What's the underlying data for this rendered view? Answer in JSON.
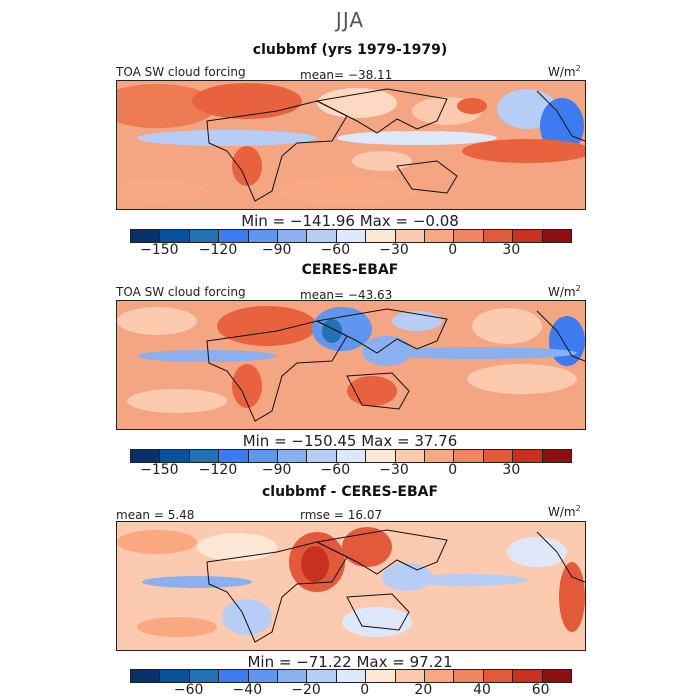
{
  "figure": {
    "season": "JJA",
    "units_label": "W/m",
    "units_sup": "2"
  },
  "chart_data": [
    {
      "type": "heatmap",
      "title": "clubbmf (yrs 1979-1979)",
      "left_label": "TOA SW cloud forcing",
      "stat_label": "mean= −38.11",
      "min_max_text": "Min = −141.96 Max = −0.08",
      "min": -141.96,
      "max": -0.08,
      "mean": -38.11,
      "colorbar": {
        "bounds": [
          -165,
          -150,
          -135,
          -120,
          -105,
          -90,
          -75,
          -60,
          -45,
          -30,
          -15,
          0,
          15,
          30,
          45,
          60
        ],
        "colors": [
          "#08306b",
          "#08519c",
          "#2171b5",
          "#3d7cf0",
          "#5f96f0",
          "#8ab0f0",
          "#b6cdf6",
          "#dfe8fb",
          "#fde7d6",
          "#fccaae",
          "#f9a882",
          "#f08660",
          "#e35a3a",
          "#c8311e",
          "#8f1010"
        ],
        "tick_values": [
          -150,
          -120,
          -90,
          -60,
          -30,
          0,
          30
        ],
        "tick_labels": [
          "−150",
          "−120",
          "−90",
          "−60",
          "−30",
          "0",
          "30"
        ]
      }
    },
    {
      "type": "heatmap",
      "title": "CERES-EBAF",
      "left_label": "TOA SW cloud forcing",
      "stat_label": "mean= −43.63",
      "min_max_text": "Min = −150.45 Max = 37.76",
      "min": -150.45,
      "max": 37.76,
      "mean": -43.63,
      "colorbar": {
        "bounds": [
          -165,
          -150,
          -135,
          -120,
          -105,
          -90,
          -75,
          -60,
          -45,
          -30,
          -15,
          0,
          15,
          30,
          45,
          60
        ],
        "colors": [
          "#08306b",
          "#08519c",
          "#2171b5",
          "#3d7cf0",
          "#5f96f0",
          "#8ab0f0",
          "#b6cdf6",
          "#dfe8fb",
          "#fde7d6",
          "#fccaae",
          "#f9a882",
          "#f08660",
          "#e35a3a",
          "#c8311e",
          "#8f1010"
        ],
        "tick_values": [
          -150,
          -120,
          -90,
          -60,
          -30,
          0,
          30
        ],
        "tick_labels": [
          "−150",
          "−120",
          "−90",
          "−60",
          "−30",
          "0",
          "30"
        ]
      }
    },
    {
      "type": "heatmap",
      "title": "clubbmf - CERES-EBAF",
      "left_label": "mean =   5.48",
      "stat_label": "rmse =  16.07",
      "min_max_text": "Min = −71.22 Max =  97.21",
      "min": -71.22,
      "max": 97.21,
      "mean": 5.48,
      "rmse": 16.07,
      "colorbar": {
        "bounds": [
          -80,
          -70,
          -60,
          -50,
          -40,
          -30,
          -20,
          -10,
          0,
          10,
          20,
          30,
          40,
          50,
          60,
          70
        ],
        "colors": [
          "#08306b",
          "#08519c",
          "#2171b5",
          "#3d7cf0",
          "#5f96f0",
          "#8ab0f0",
          "#b6cdf6",
          "#dfe8fb",
          "#fde7d6",
          "#fccaae",
          "#f9a882",
          "#f08660",
          "#e35a3a",
          "#c8311e",
          "#8f1010"
        ],
        "tick_values": [
          -60,
          -40,
          -20,
          0,
          20,
          40,
          60
        ],
        "tick_labels": [
          "−60",
          "−40",
          "−20",
          "0",
          "20",
          "40",
          "60"
        ]
      }
    }
  ]
}
